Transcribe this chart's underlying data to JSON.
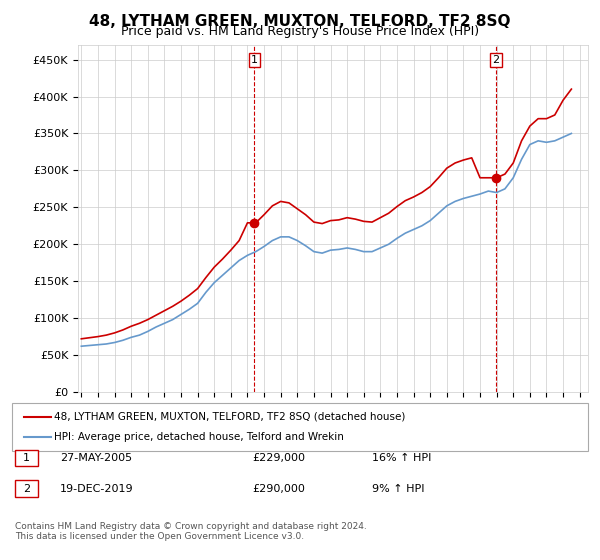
{
  "title": "48, LYTHAM GREEN, MUXTON, TELFORD, TF2 8SQ",
  "subtitle": "Price paid vs. HM Land Registry's House Price Index (HPI)",
  "ylabel_ticks": [
    "£0",
    "£50K",
    "£100K",
    "£150K",
    "£200K",
    "£250K",
    "£300K",
    "£350K",
    "£400K",
    "£450K"
  ],
  "ylabel_values": [
    0,
    50000,
    100000,
    150000,
    200000,
    250000,
    300000,
    350000,
    400000,
    450000
  ],
  "ylim": [
    0,
    470000
  ],
  "legend_line1": "48, LYTHAM GREEN, MUXTON, TELFORD, TF2 8SQ (detached house)",
  "legend_line2": "HPI: Average price, detached house, Telford and Wrekin",
  "sale1_label": "1",
  "sale1_date": "27-MAY-2005",
  "sale1_price": "£229,000",
  "sale1_hpi": "16% ↑ HPI",
  "sale2_label": "2",
  "sale2_date": "19-DEC-2019",
  "sale2_price": "£290,000",
  "sale2_hpi": "9% ↑ HPI",
  "footnote": "Contains HM Land Registry data © Crown copyright and database right 2024.\nThis data is licensed under the Open Government Licence v3.0.",
  "line_color_red": "#cc0000",
  "line_color_blue": "#6699cc",
  "marker_color_red": "#cc0000",
  "vline_color": "#cc0000",
  "background_color": "#ffffff",
  "hpi_line": {
    "years": [
      1995,
      1995.5,
      1996,
      1996.5,
      1997,
      1997.5,
      1998,
      1998.5,
      1999,
      1999.5,
      2000,
      2000.5,
      2001,
      2001.5,
      2002,
      2002.5,
      2003,
      2003.5,
      2004,
      2004.5,
      2005,
      2005.5,
      2006,
      2006.5,
      2007,
      2007.5,
      2008,
      2008.5,
      2009,
      2009.5,
      2010,
      2010.5,
      2011,
      2011.5,
      2012,
      2012.5,
      2013,
      2013.5,
      2014,
      2014.5,
      2015,
      2015.5,
      2016,
      2016.5,
      2017,
      2017.5,
      2018,
      2018.5,
      2019,
      2019.5,
      2020,
      2020.5,
      2021,
      2021.5,
      2022,
      2022.5,
      2023,
      2023.5,
      2024,
      2024.5
    ],
    "values": [
      62000,
      63000,
      64000,
      65000,
      67000,
      70000,
      74000,
      77000,
      82000,
      88000,
      93000,
      98000,
      105000,
      112000,
      120000,
      135000,
      148000,
      158000,
      168000,
      178000,
      185000,
      190000,
      197000,
      205000,
      210000,
      210000,
      205000,
      198000,
      190000,
      188000,
      192000,
      193000,
      195000,
      193000,
      190000,
      190000,
      195000,
      200000,
      208000,
      215000,
      220000,
      225000,
      232000,
      242000,
      252000,
      258000,
      262000,
      265000,
      268000,
      272000,
      270000,
      275000,
      290000,
      315000,
      335000,
      340000,
      338000,
      340000,
      345000,
      350000
    ]
  },
  "price_line": {
    "years": [
      1995,
      1995.5,
      1996,
      1996.5,
      1997,
      1997.5,
      1998,
      1998.5,
      1999,
      1999.5,
      2000,
      2000.5,
      2001,
      2001.5,
      2002,
      2002.5,
      2003,
      2003.5,
      2004,
      2004.5,
      2005,
      2005.5,
      2006,
      2006.5,
      2007,
      2007.5,
      2008,
      2008.5,
      2009,
      2009.5,
      2010,
      2010.5,
      2011,
      2011.5,
      2012,
      2012.5,
      2013,
      2013.5,
      2014,
      2014.5,
      2015,
      2015.5,
      2016,
      2016.5,
      2017,
      2017.5,
      2018,
      2018.5,
      2019,
      2019.5,
      2020,
      2020.5,
      2021,
      2021.5,
      2022,
      2022.5,
      2023,
      2023.5,
      2024,
      2024.5
    ],
    "values": [
      72000,
      73500,
      75000,
      77000,
      80000,
      84000,
      89000,
      93000,
      98000,
      104000,
      110000,
      116000,
      123000,
      131000,
      140000,
      155000,
      169000,
      180000,
      192000,
      205000,
      229000,
      229000,
      240000,
      252000,
      258000,
      256000,
      248000,
      240000,
      230000,
      228000,
      232000,
      233000,
      236000,
      234000,
      231000,
      230000,
      236000,
      242000,
      251000,
      259000,
      264000,
      270000,
      278000,
      290000,
      303000,
      310000,
      314000,
      317000,
      290000,
      290000,
      290000,
      295000,
      310000,
      340000,
      360000,
      370000,
      370000,
      375000,
      395000,
      410000
    ]
  },
  "sale1_x": 2005.42,
  "sale1_y": 229000,
  "sale2_x": 2019.96,
  "sale2_y": 290000,
  "xlim_left": 1994.8,
  "xlim_right": 2025.5,
  "xticks": [
    1995,
    1996,
    1997,
    1998,
    1999,
    2000,
    2001,
    2002,
    2003,
    2004,
    2005,
    2006,
    2007,
    2008,
    2009,
    2010,
    2011,
    2012,
    2013,
    2014,
    2015,
    2016,
    2017,
    2018,
    2019,
    2020,
    2021,
    2022,
    2023,
    2024,
    2025
  ]
}
